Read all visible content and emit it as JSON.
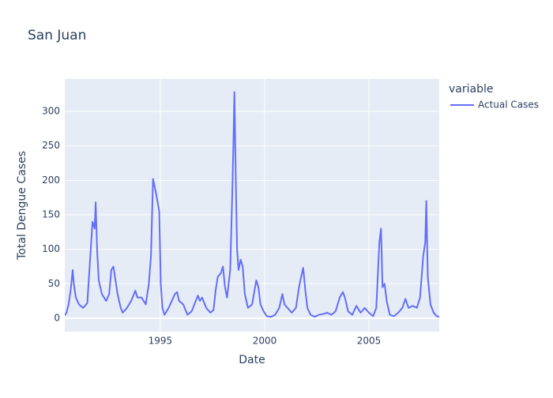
{
  "chart_data": {
    "type": "line",
    "title": "San Juan",
    "x_label": "Date",
    "y_label": "Total Dengue Cases",
    "legend_title": "variable",
    "legend": "right-top",
    "grid": true,
    "background": "#e5ecf6",
    "x": [
      1990.42,
      1990.5,
      1990.6,
      1990.7,
      1990.8,
      1990.85,
      1990.95,
      1991.1,
      1991.3,
      1991.5,
      1991.6,
      1991.75,
      1991.85,
      1991.9,
      1991.97,
      1992.05,
      1992.2,
      1992.4,
      1992.55,
      1992.65,
      1992.75,
      1992.85,
      1992.95,
      1993.1,
      1993.2,
      1993.4,
      1993.6,
      1993.8,
      1993.9,
      1994.1,
      1994.3,
      1994.45,
      1994.55,
      1994.65,
      1994.8,
      1994.95,
      1995.02,
      1995.1,
      1995.2,
      1995.4,
      1995.7,
      1995.8,
      1995.9,
      1996.1,
      1996.3,
      1996.5,
      1996.7,
      1996.8,
      1996.9,
      1997.0,
      1997.2,
      1997.4,
      1997.55,
      1997.65,
      1997.75,
      1997.9,
      1998.0,
      1998.1,
      1998.2,
      1998.35,
      1998.45,
      1998.5,
      1998.55,
      1998.62,
      1998.68,
      1998.75,
      1998.85,
      1998.95,
      1999.05,
      1999.2,
      1999.4,
      1999.6,
      1999.7,
      1999.8,
      1999.95,
      2000.1,
      2000.3,
      2000.5,
      2000.7,
      2000.85,
      2000.95,
      2001.1,
      2001.3,
      2001.5,
      2001.65,
      2001.75,
      2001.85,
      2001.95,
      2002.05,
      2002.2,
      2002.4,
      2002.6,
      2002.8,
      2003.0,
      2003.2,
      2003.4,
      2003.6,
      2003.75,
      2003.85,
      2004.0,
      2004.2,
      2004.4,
      2004.6,
      2004.8,
      2005.0,
      2005.2,
      2005.35,
      2005.5,
      2005.58,
      2005.65,
      2005.75,
      2005.85,
      2006.0,
      2006.2,
      2006.4,
      2006.6,
      2006.75,
      2006.9,
      2007.1,
      2007.3,
      2007.45,
      2007.6,
      2007.7,
      2007.75,
      2007.82,
      2007.95,
      2008.1,
      2008.25,
      2008.37
    ],
    "series": [
      {
        "name": "Actual Cases",
        "color": "#636efa",
        "values": [
          4,
          8,
          20,
          40,
          70,
          50,
          30,
          20,
          15,
          22,
          70,
          140,
          130,
          168,
          100,
          55,
          35,
          25,
          35,
          70,
          75,
          55,
          35,
          15,
          8,
          15,
          25,
          40,
          30,
          30,
          20,
          50,
          90,
          202,
          180,
          155,
          50,
          15,
          5,
          15,
          35,
          38,
          25,
          20,
          5,
          10,
          25,
          33,
          25,
          30,
          15,
          8,
          12,
          40,
          60,
          65,
          75,
          45,
          30,
          70,
          180,
          250,
          328,
          200,
          100,
          70,
          85,
          75,
          35,
          15,
          20,
          55,
          45,
          20,
          10,
          3,
          2,
          5,
          15,
          35,
          20,
          15,
          8,
          15,
          45,
          60,
          73,
          40,
          15,
          5,
          2,
          5,
          6,
          8,
          5,
          10,
          30,
          38,
          30,
          10,
          5,
          18,
          8,
          15,
          8,
          3,
          15,
          110,
          130,
          45,
          50,
          25,
          5,
          3,
          8,
          15,
          28,
          15,
          18,
          15,
          30,
          90,
          110,
          170,
          60,
          20,
          8,
          3,
          2
        ]
      }
    ],
    "xlim": [
      1990.42,
      2008.37
    ],
    "ylim": [
      -19.5,
      347
    ],
    "xticks": [
      1995,
      2000,
      2005
    ],
    "yticks": [
      0,
      50,
      100,
      150,
      200,
      250,
      300
    ]
  }
}
